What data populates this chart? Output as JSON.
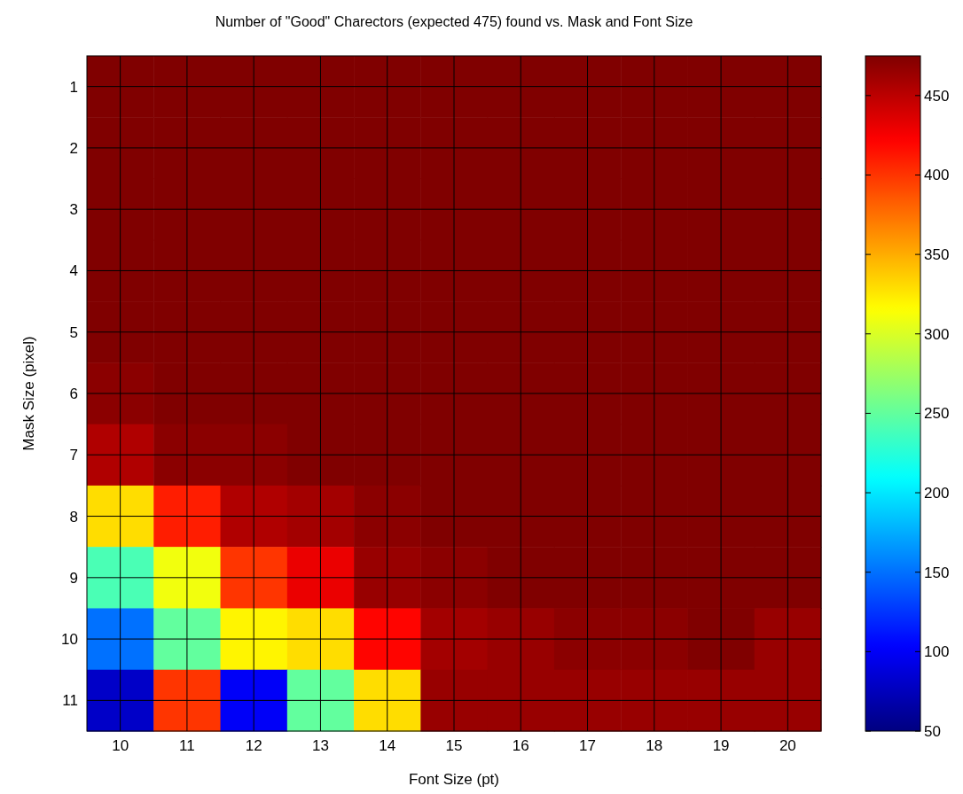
{
  "chart_data": {
    "type": "heatmap",
    "title": "Number of \"Good\" Charectors (expected 475) found vs. Mask and Font Size",
    "xlabel": "Font Size (pt)",
    "ylabel": "Mask Size (pixel)",
    "categories": [
      "10",
      "11",
      "12",
      "13",
      "14",
      "15",
      "16",
      "17",
      "18",
      "19",
      "20"
    ],
    "y_categories": [
      "1",
      "2",
      "3",
      "4",
      "5",
      "6",
      "7",
      "8",
      "9",
      "10",
      "11"
    ],
    "cells": [
      [
        475,
        475,
        475,
        475,
        475,
        475,
        475,
        475,
        475,
        475,
        475
      ],
      [
        475,
        475,
        475,
        475,
        475,
        475,
        475,
        475,
        475,
        475,
        475
      ],
      [
        475,
        475,
        475,
        475,
        475,
        475,
        475,
        475,
        475,
        475,
        475
      ],
      [
        475,
        475,
        475,
        475,
        475,
        475,
        475,
        475,
        475,
        475,
        475
      ],
      [
        475,
        475,
        475,
        475,
        475,
        475,
        475,
        475,
        475,
        475,
        475
      ],
      [
        470,
        475,
        475,
        475,
        475,
        475,
        475,
        475,
        475,
        475,
        475
      ],
      [
        455,
        470,
        470,
        475,
        475,
        475,
        475,
        475,
        475,
        475,
        475
      ],
      [
        330,
        410,
        455,
        460,
        470,
        475,
        475,
        475,
        475,
        475,
        475
      ],
      [
        240,
        310,
        400,
        430,
        465,
        470,
        475,
        475,
        475,
        475,
        475
      ],
      [
        150,
        250,
        320,
        330,
        420,
        460,
        465,
        470,
        470,
        475,
        465
      ],
      [
        80,
        400,
        100,
        250,
        330,
        465,
        465,
        465,
        465,
        465,
        465
      ]
    ],
    "clim": [
      50,
      475
    ],
    "cticks": [
      50,
      100,
      150,
      200,
      250,
      300,
      350,
      400,
      450
    ],
    "grid": true
  }
}
